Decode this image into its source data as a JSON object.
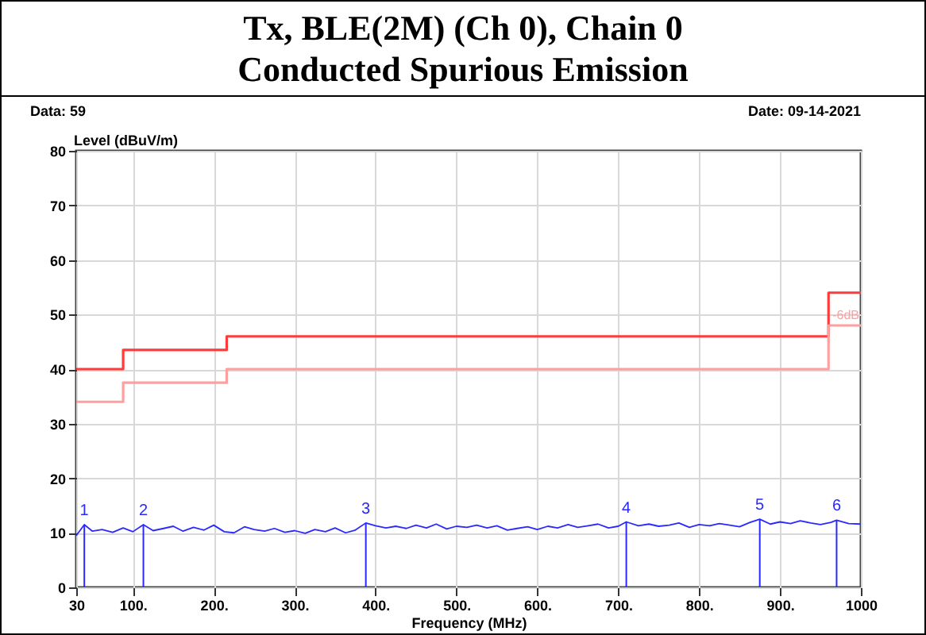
{
  "chart_data": {
    "type": "line",
    "title": "Tx, BLE(2M) (Ch 0), Chain 0",
    "subtitle": "Conducted Spurious Emission",
    "xlabel": "Frequency (MHz)",
    "ylabel": "Level (dBuV/m)",
    "xlim": [
      30,
      1000
    ],
    "xticks": [
      30,
      {
        "value": 100,
        "label": "100."
      },
      {
        "value": 200,
        "label": "200."
      },
      {
        "value": 300,
        "label": "300."
      },
      {
        "value": 400,
        "label": "400."
      },
      {
        "value": 500,
        "label": "500."
      },
      {
        "value": 600,
        "label": "600."
      },
      {
        "value": 700,
        "label": "700."
      },
      {
        "value": 800,
        "label": "800."
      },
      {
        "value": 900,
        "label": "900."
      },
      1000
    ],
    "ylim": [
      0,
      80
    ],
    "yticks": [
      0,
      10,
      20,
      30,
      40,
      50,
      60,
      70,
      80
    ],
    "grid": true,
    "series": [
      {
        "type": "step",
        "color": "#ff3b3b",
        "x": [
          30,
          88,
          216,
          960,
          1000
        ],
        "values": [
          40,
          43.5,
          46,
          54,
          54
        ]
      },
      {
        "type": "step",
        "name": "-6dB",
        "color": "#ffa0a0",
        "x": [
          30,
          88,
          216,
          960,
          1000
        ],
        "values": [
          34,
          37.5,
          40,
          48,
          48
        ]
      },
      {
        "color": "#2a2aff",
        "x": [
          30,
          40,
          50,
          62,
          75,
          88,
          100,
          113,
          125,
          138,
          150,
          162,
          175,
          188,
          200,
          213,
          225,
          238,
          250,
          263,
          275,
          288,
          300,
          313,
          325,
          338,
          350,
          363,
          375,
          388,
          400,
          413,
          425,
          438,
          450,
          463,
          475,
          488,
          500,
          513,
          525,
          538,
          550,
          563,
          575,
          588,
          600,
          613,
          625,
          638,
          650,
          663,
          675,
          688,
          700,
          710,
          725,
          738,
          750,
          763,
          775,
          788,
          800,
          813,
          825,
          838,
          850,
          863,
          875,
          888,
          900,
          913,
          925,
          938,
          950,
          963,
          970,
          985,
          1000
        ],
        "values": [
          9.5,
          11.5,
          10.3,
          10.6,
          10.1,
          10.9,
          10.2,
          11.5,
          10.4,
          10.8,
          11.2,
          10.3,
          11.0,
          10.5,
          11.4,
          10.2,
          10.0,
          11.1,
          10.6,
          10.3,
          10.8,
          10.1,
          10.4,
          9.9,
          10.6,
          10.2,
          10.9,
          10.0,
          10.5,
          11.8,
          11.3,
          10.9,
          11.2,
          10.8,
          11.4,
          10.9,
          11.6,
          10.7,
          11.2,
          11.0,
          11.4,
          10.9,
          11.3,
          10.5,
          10.8,
          11.1,
          10.6,
          11.2,
          10.9,
          11.5,
          11.0,
          11.3,
          11.6,
          10.9,
          11.2,
          12.0,
          11.3,
          11.6,
          11.2,
          11.4,
          11.8,
          11.0,
          11.5,
          11.3,
          11.7,
          11.4,
          11.1,
          11.9,
          12.5,
          11.6,
          12.0,
          11.7,
          12.2,
          11.8,
          11.5,
          11.9,
          12.3,
          11.7,
          11.6
        ]
      }
    ],
    "annotations": [
      "Data: 59",
      "Date: 09-14-2021",
      {
        "text": "1",
        "x": 40,
        "y": 11.5
      },
      {
        "text": "2",
        "x": 113,
        "y": 11.5
      },
      {
        "text": "3",
        "x": 388,
        "y": 11.8
      },
      {
        "text": "4",
        "x": 710,
        "y": 12.0
      },
      {
        "text": "5",
        "x": 875,
        "y": 12.5
      },
      {
        "text": "6",
        "x": 970,
        "y": 12.3
      }
    ]
  }
}
